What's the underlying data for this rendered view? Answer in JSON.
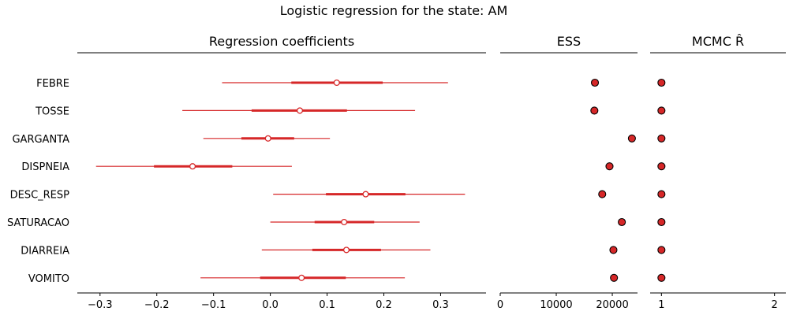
{
  "suptitle": "Logistic regression for the state: AM",
  "colors": {
    "accent": "#d62728",
    "marker_edge": "#000000",
    "axis": "#000000"
  },
  "chart_data": [
    {
      "type": "forest",
      "title": "Regression coefficients",
      "categories": [
        "FEBRE",
        "TOSSE",
        "GARGANTA",
        "DISPNEIA",
        "DESC_RESP",
        "SATURACAO",
        "DIARREIA",
        "VOMITO"
      ],
      "point": [
        0.117,
        0.052,
        -0.004,
        -0.137,
        0.168,
        0.13,
        0.134,
        0.055
      ],
      "hdi_low": [
        -0.085,
        -0.155,
        -0.118,
        -0.307,
        0.005,
        0.0,
        -0.015,
        -0.123
      ],
      "hdi_high": [
        0.313,
        0.255,
        0.105,
        0.038,
        0.343,
        0.263,
        0.282,
        0.237
      ],
      "iqr_low": [
        0.037,
        -0.033,
        -0.051,
        -0.205,
        0.098,
        0.078,
        0.074,
        -0.018
      ],
      "iqr_high": [
        0.198,
        0.135,
        0.042,
        -0.067,
        0.238,
        0.183,
        0.195,
        0.133
      ],
      "xlim": [
        -0.34,
        0.38
      ],
      "xticks": [
        -0.3,
        -0.2,
        -0.1,
        0.0,
        0.1,
        0.2,
        0.3
      ],
      "xtick_labels": [
        "−0.3",
        "−0.2",
        "−0.1",
        "0.0",
        "0.1",
        "0.2",
        "0.3"
      ]
    },
    {
      "type": "scatter",
      "title": "ESS",
      "categories": [
        "FEBRE",
        "TOSSE",
        "GARGANTA",
        "DISPNEIA",
        "DESC_RESP",
        "SATURACAO",
        "DIARREIA",
        "VOMITO"
      ],
      "values": [
        16900,
        16800,
        23500,
        19500,
        18200,
        21700,
        20200,
        20300
      ],
      "xlim": [
        0,
        24500
      ],
      "xticks": [
        0,
        10000,
        20000
      ],
      "xtick_labels": [
        "0",
        "10000",
        "20000"
      ]
    },
    {
      "type": "scatter",
      "title": "MCMC R̂",
      "categories": [
        "FEBRE",
        "TOSSE",
        "GARGANTA",
        "DISPNEIA",
        "DESC_RESP",
        "SATURACAO",
        "DIARREIA",
        "VOMITO"
      ],
      "values": [
        1.0,
        1.0,
        1.0,
        1.0,
        1.0,
        1.0,
        1.0,
        1.0
      ],
      "xlim": [
        0.9,
        2.1
      ],
      "xticks": [
        1,
        2
      ],
      "xtick_labels": [
        "1",
        "2"
      ]
    }
  ]
}
